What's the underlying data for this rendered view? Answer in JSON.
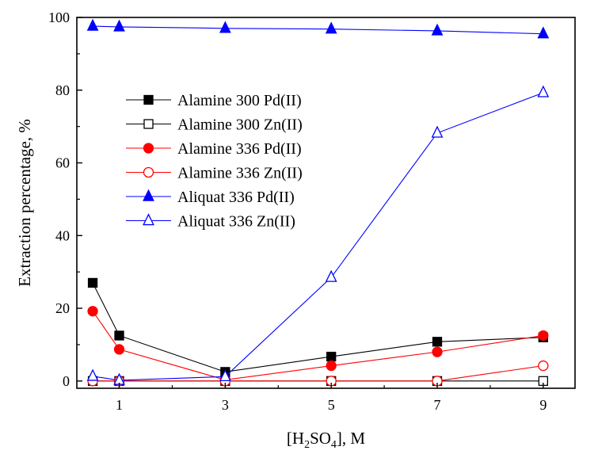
{
  "chart_data": {
    "type": "line",
    "title": "",
    "xlabel_parts": [
      "[H",
      "2",
      "SO",
      "4",
      "], M"
    ],
    "ylabel": "Extraction percentage, %",
    "xlim": [
      0.2,
      9.6
    ],
    "ylim": [
      -2,
      100
    ],
    "xticks": [
      1,
      3,
      5,
      7,
      9
    ],
    "yticks": [
      0,
      20,
      40,
      60,
      80,
      100
    ],
    "x": [
      0.5,
      1,
      3,
      5,
      7,
      9
    ],
    "legend_position": "upper-left",
    "series": [
      {
        "name": "Alamine 300 Pd(II)",
        "values": [
          27,
          12.5,
          2.5,
          6.7,
          10.8,
          12
        ],
        "color": "#000000",
        "marker": "square",
        "filled": true
      },
      {
        "name": "Alamine 300 Zn(II)",
        "values": [
          0,
          0,
          0,
          0,
          0,
          0
        ],
        "color": "#000000",
        "marker": "square",
        "filled": false
      },
      {
        "name": "Alamine 336 Pd(II)",
        "values": [
          19.2,
          8.7,
          0.3,
          4.2,
          8,
          12.5
        ],
        "color": "#ff0000",
        "marker": "circle",
        "filled": true
      },
      {
        "name": "Alamine 336 Zn(II)",
        "values": [
          0,
          0,
          0,
          0,
          0,
          4.2
        ],
        "color": "#ff0000",
        "marker": "circle",
        "filled": false
      },
      {
        "name": "Aliquat 336 Pd(II)",
        "values": [
          97.6,
          97.4,
          97,
          96.8,
          96.3,
          95.5
        ],
        "color": "#0000ff",
        "marker": "triangle",
        "filled": true
      },
      {
        "name": "Aliquat 336 Zn(II)",
        "values": [
          1.3,
          0.2,
          1.2,
          28.5,
          68.2,
          79.3
        ],
        "color": "#0000ff",
        "marker": "triangle",
        "filled": false
      }
    ]
  }
}
